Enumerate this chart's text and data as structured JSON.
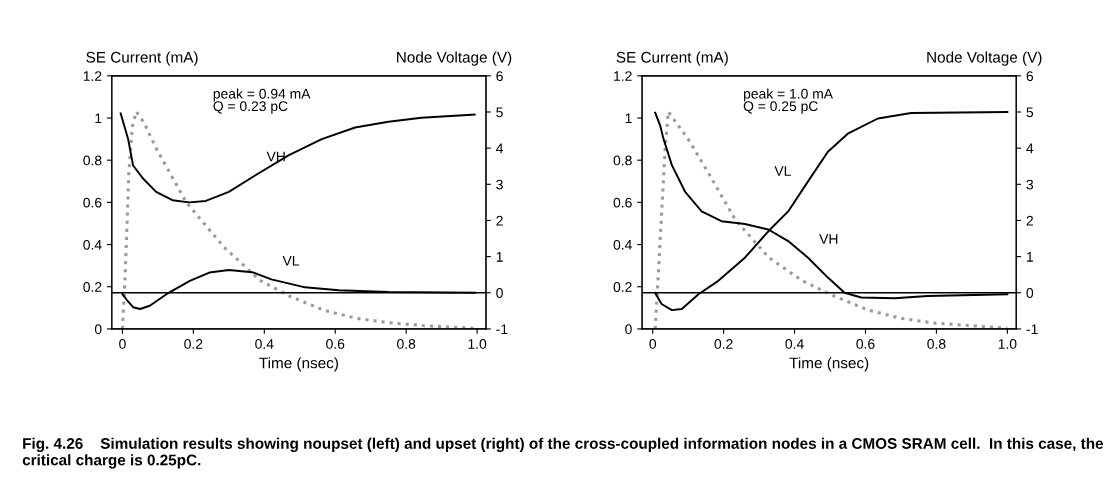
{
  "chart_data": [
    {
      "type": "line",
      "xlabel": "Time (nsec)",
      "ylabel": "SE Current (mA)",
      "y2label": "Node Voltage (V)",
      "xlim": [
        -0.03,
        1.025
      ],
      "xticks": [
        0,
        0.2,
        0.4,
        0.6,
        0.8,
        {
          "value": 1,
          "label": "1.0"
        }
      ],
      "ylim": [
        0,
        1.2
      ],
      "yticks": [
        0,
        0.2,
        0.4,
        0.6,
        0.8,
        1,
        1.2
      ],
      "y2lim": [
        -1,
        6
      ],
      "y2ticks": [
        -1,
        0,
        1,
        2,
        3,
        4,
        5,
        6
      ],
      "grid": false,
      "legend": false,
      "ref_lines": [
        {
          "axis": "y2",
          "value": 0,
          "color": "#000000",
          "line_style": "solid"
        }
      ],
      "annotations": [
        "peak = 0.94 mA\nQ = 0.23 pC"
      ],
      "series": [
        {
          "color": "#9a9a9a",
          "line_style": "dotted",
          "x": [
            0.0,
            0.008,
            0.018,
            0.028,
            0.039,
            0.06,
            0.097,
            0.18,
            0.285,
            0.388,
            0.472,
            0.566,
            0.66,
            0.75,
            0.845,
            0.995
          ],
          "values": [
            0,
            0.265,
            0.74,
            0.96,
            1.03,
            0.98,
            0.85,
            0.6,
            0.39,
            0.23,
            0.155,
            0.09,
            0.05,
            0.03,
            0.016,
            0.003
          ]
        },
        {
          "name": "VH",
          "axis": "y2",
          "color": "#000000",
          "line_style": "solid",
          "x": [
            -0.005,
            0.016,
            0.03,
            0.058,
            0.095,
            0.141,
            0.188,
            0.235,
            0.3,
            0.375,
            0.468,
            0.562,
            0.656,
            0.75,
            0.843,
            0.993
          ],
          "values": [
            4.96,
            4.25,
            3.52,
            3.16,
            2.79,
            2.56,
            2.5,
            2.54,
            2.79,
            3.25,
            3.8,
            4.25,
            4.57,
            4.73,
            4.84,
            4.93
          ]
        },
        {
          "name": "VL",
          "axis": "y2",
          "color": "#000000",
          "line_style": "solid",
          "x": [
            0.0,
            0.014,
            0.03,
            0.05,
            0.077,
            0.124,
            0.19,
            0.245,
            0.3,
            0.366,
            0.42,
            0.515,
            0.61,
            0.75,
            0.993
          ],
          "values": [
            -0.04,
            -0.22,
            -0.4,
            -0.45,
            -0.36,
            -0.04,
            0.33,
            0.56,
            0.63,
            0.57,
            0.37,
            0.15,
            0.07,
            0.02,
            0
          ]
        }
      ]
    },
    {
      "type": "line",
      "xlabel": "Time (nsec)",
      "ylabel": "SE Current (mA)",
      "y2label": "Node Voltage (V)",
      "xlim": [
        -0.03,
        1.025
      ],
      "xticks": [
        0,
        0.2,
        0.4,
        0.6,
        0.8,
        {
          "value": 1,
          "label": "1.0"
        }
      ],
      "ylim": [
        0,
        1.2
      ],
      "yticks": [
        0,
        0.2,
        0.4,
        0.6,
        0.8,
        1,
        1.2
      ],
      "y2lim": [
        -1,
        6
      ],
      "y2ticks": [
        -1,
        0,
        1,
        2,
        3,
        4,
        5,
        6
      ],
      "grid": false,
      "legend": false,
      "ref_lines": [
        {
          "axis": "y2",
          "value": 0,
          "color": "#000000",
          "line_style": "solid"
        }
      ],
      "annotations": [
        "peak = 1.0 mA\nQ = 0.25 pC",
        "Fig. 4.26    Simulation results showing noupset (left) and upset (right) of the cross-coupled information nodes in a CMOS SRAM cell.  In this case, the critical charge is 0.25pC."
      ],
      "series": [
        {
          "color": "#9a9a9a",
          "line_style": "dotted",
          "x": [
            0.007,
            0.016,
            0.035,
            0.044,
            0.1,
            0.157,
            0.232,
            0.326,
            0.42,
            0.513,
            0.607,
            0.7,
            0.794,
            1.0
          ],
          "values": [
            0,
            0.265,
            0.85,
            1.03,
            0.9,
            0.74,
            0.52,
            0.34,
            0.23,
            0.155,
            0.09,
            0.05,
            0.028,
            0.003
          ]
        },
        {
          "name": "VH",
          "axis": "y2",
          "color": "#000000",
          "line_style": "solid",
          "x": [
            0.007,
            0.021,
            0.03,
            0.054,
            0.091,
            0.138,
            0.194,
            0.26,
            0.326,
            0.382,
            0.438,
            0.494,
            0.541,
            0.588,
            0.682,
            0.775,
            1.0
          ],
          "values": [
            4.98,
            4.63,
            4.27,
            3.53,
            2.8,
            2.25,
            1.98,
            1.9,
            1.75,
            1.43,
            0.97,
            0.42,
            0,
            -0.13,
            -0.15,
            -0.09,
            -0.04
          ]
        },
        {
          "name": "VL",
          "axis": "y2",
          "color": "#000000",
          "line_style": "solid",
          "x": [
            0.007,
            0.025,
            0.054,
            0.082,
            0.129,
            0.185,
            0.26,
            0.326,
            0.382,
            0.438,
            0.494,
            0.55,
            0.635,
            0.729,
            1.0
          ],
          "values": [
            0,
            -0.31,
            -0.48,
            -0.45,
            -0.04,
            0.33,
            0.97,
            1.7,
            2.25,
            3.08,
            3.9,
            4.4,
            4.82,
            4.97,
            5.0
          ]
        }
      ]
    }
  ]
}
